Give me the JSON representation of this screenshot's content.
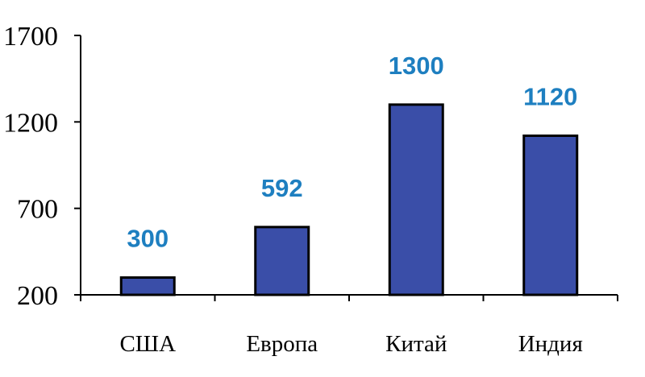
{
  "chart_data": {
    "type": "bar",
    "title": "",
    "xlabel": "",
    "ylabel": "",
    "categories": [
      "США",
      "Европа",
      "Китай",
      "Индия"
    ],
    "values": [
      300,
      592,
      1300,
      1120
    ],
    "data_labels": [
      "300",
      "592",
      "1300",
      "1120"
    ],
    "ylim": [
      200,
      1700
    ],
    "yticks": [
      200,
      700,
      1200,
      1700
    ],
    "ytick_labels": [
      "200",
      "700",
      "1200",
      "1700"
    ],
    "grid": false,
    "legend": "none",
    "colors": {
      "bar_fill": "#3A4EA8",
      "bar_stroke": "#000000",
      "data_label": "#1E7FC0",
      "axis": "#000000"
    }
  }
}
